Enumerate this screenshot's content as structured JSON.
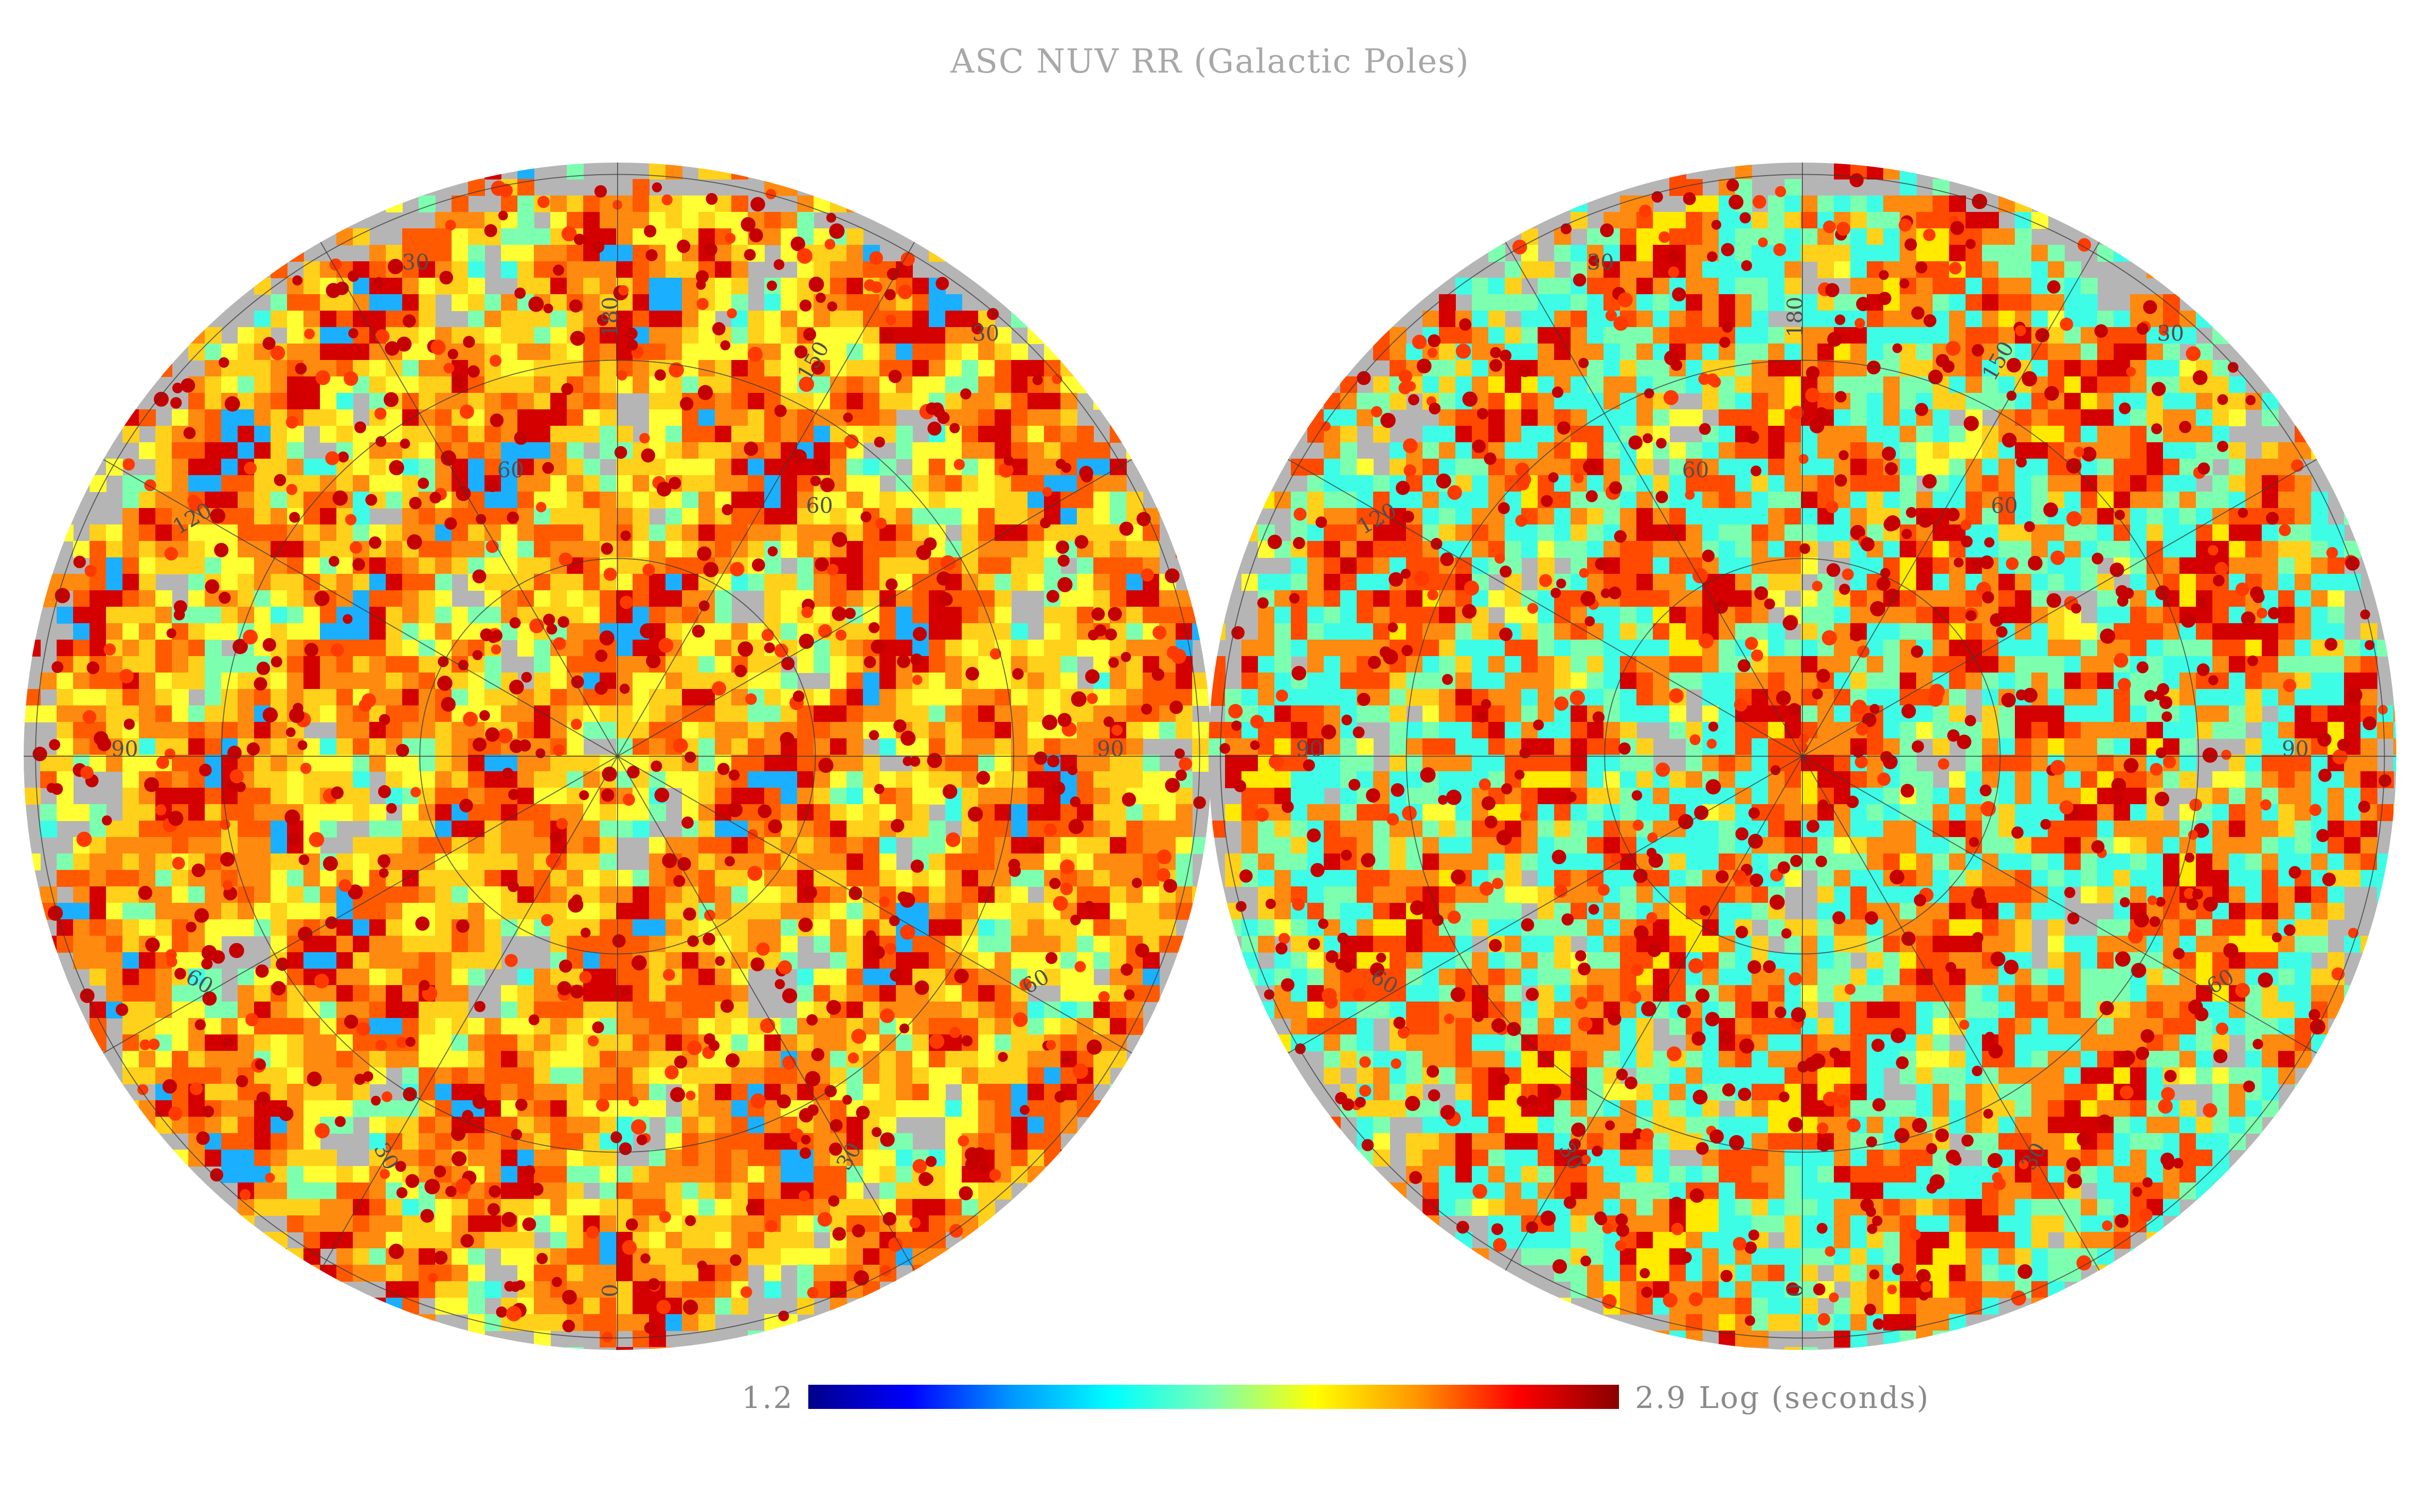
{
  "title": "ASC NUV RR (Galactic Poles)",
  "colorbar": {
    "min_label": "1.2",
    "max_label": "2.9",
    "units_label": "Log (seconds)",
    "stops": [
      "#00008a",
      "#0000ff",
      "#0096ff",
      "#00ffff",
      "#7dffb0",
      "#ffff00",
      "#ff9600",
      "#ff0000",
      "#8a0000"
    ]
  },
  "colors": {
    "no_data": "#b5b5b5",
    "grid": "#3a3a3a",
    "background": "#ffffff"
  },
  "hemispheres": [
    {
      "id": "north",
      "latitude_labels": [
        "30",
        "60"
      ],
      "longitude_labels": [
        "0",
        "30",
        "60",
        "90",
        "120",
        "150",
        "180"
      ],
      "dominant_palette": [
        "#3dfde6",
        "#7dffb0",
        "#ffff33",
        "#ffd11a",
        "#ff8a10",
        "#ff5a00",
        "#d40000",
        "#1ab0ff"
      ]
    },
    {
      "id": "south",
      "latitude_labels": [
        "30",
        "60"
      ],
      "longitude_labels": [
        "0",
        "30",
        "60",
        "90",
        "120",
        "150",
        "180"
      ],
      "dominant_palette": [
        "#ffff33",
        "#ffd11a",
        "#7dffb0",
        "#3dfde6",
        "#ff8a10",
        "#ff4a00",
        "#d40000",
        "#ffea00"
      ]
    }
  ]
}
